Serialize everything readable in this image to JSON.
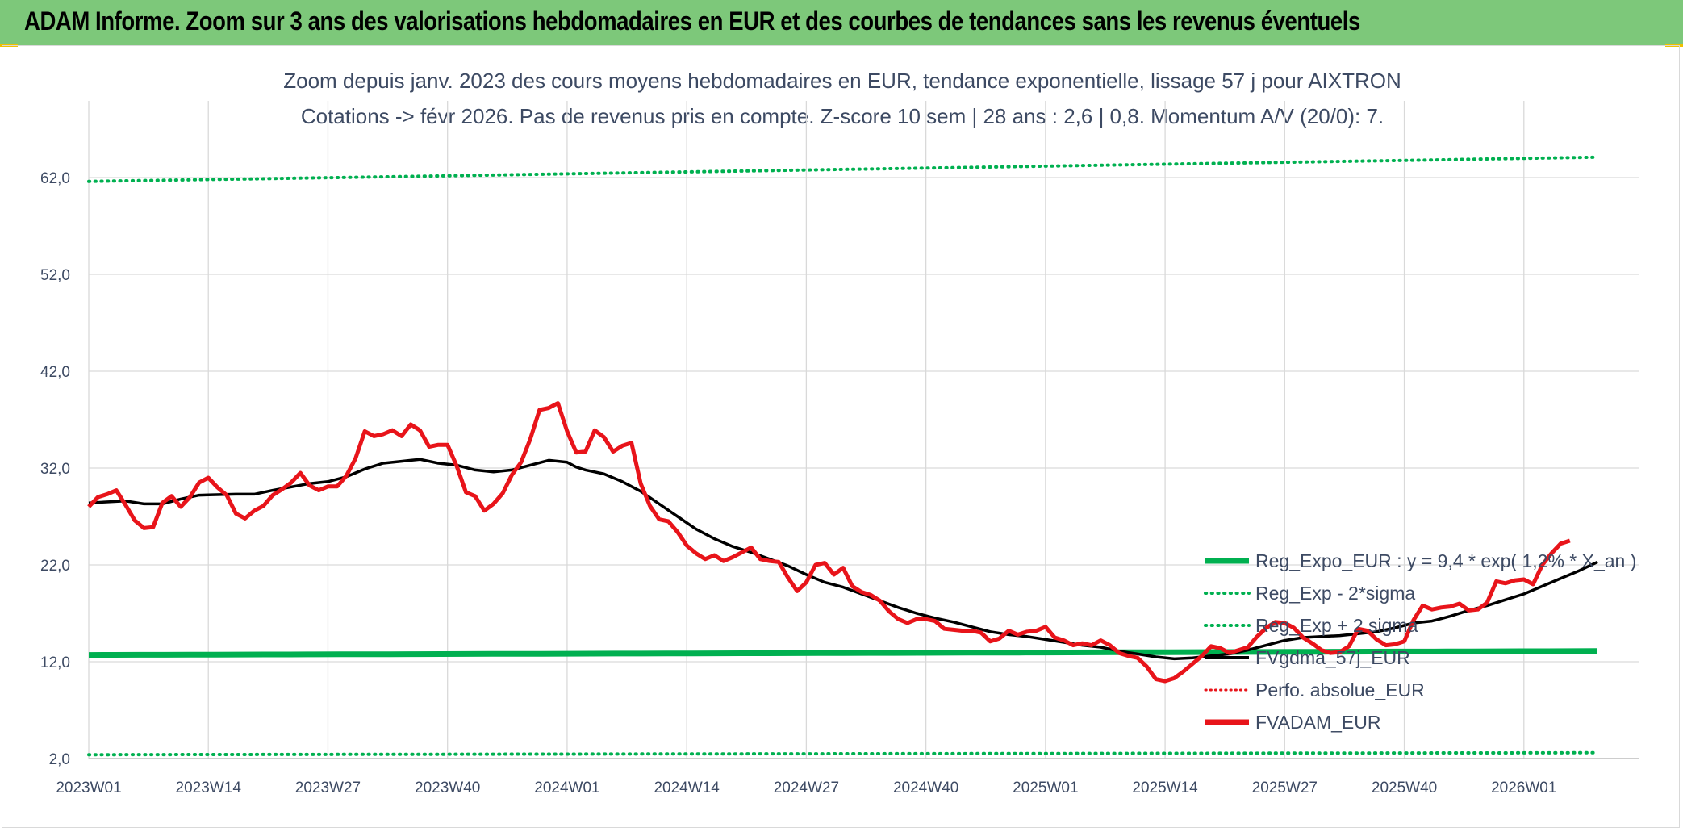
{
  "header": {
    "title": "ADAM Informe. Zoom sur 3 ans des valorisations hebdomadaires en EUR et des courbes de tendances sans les revenus éventuels"
  },
  "colors": {
    "header_bg": "#7dc87a",
    "regression": "#00b050",
    "moving_average": "#000000",
    "fvadam": "#e8141a",
    "perfo": "#e8141a",
    "grid": "#d9d9d9",
    "text": "#3d4a63"
  },
  "chart_data": {
    "type": "line",
    "title_line1": "Zoom depuis janv. 2023 des cours moyens hebdomadaires en EUR, tendance exponentielle, lissage 57 j pour AIXTRON",
    "title_line2": "Cotations -> févr 2026. Pas de revenus pris en compte. Z-score 10 sem | 28 ans : 2,6 | 0,8. Momentum A/V (20/0): 7.",
    "xlabel": "",
    "ylabel": "",
    "ylim": [
      2,
      66
    ],
    "y_ticks": [
      "62,0",
      "52,0",
      "42,0",
      "32,0",
      "22,0",
      "12,0",
      "2,0"
    ],
    "y_tick_values": [
      62,
      52,
      42,
      32,
      22,
      12,
      2
    ],
    "x_ticks": [
      "2023W01",
      "2023W14",
      "2023W27",
      "2023W40",
      "2024W01",
      "2024W14",
      "2024W27",
      "2024W40",
      "2025W01",
      "2025W14",
      "2025W27",
      "2025W40",
      "2026W01"
    ],
    "x_tick_weeks": [
      0,
      13,
      26,
      39,
      52,
      65,
      78,
      91,
      104,
      117,
      130,
      143,
      156
    ],
    "x_range_weeks": [
      0,
      164
    ],
    "grid": true,
    "legend_position": "right",
    "series": [
      {
        "name": "Reg_Expo_EUR : y = 9,4 * exp( 1,2% * X_an )",
        "style": "solid-thick",
        "color": "#00b050",
        "start": 12.7,
        "end": 13.1
      },
      {
        "name": "Reg_Exp - 2*sigma",
        "style": "dotted",
        "color": "#00b050",
        "start": 2.4,
        "end": 2.6
      },
      {
        "name": "Reg_Exp + 2 sigma",
        "style": "dotted",
        "color": "#00b050",
        "start": 61.6,
        "end": 64.1
      },
      {
        "name": "FVgdma_57j_EUR",
        "style": "solid",
        "color": "#000000",
        "points": [
          [
            0,
            28.4
          ],
          [
            4,
            28.6
          ],
          [
            6,
            28.3
          ],
          [
            8,
            28.3
          ],
          [
            10,
            28.8
          ],
          [
            12,
            29.2
          ],
          [
            16,
            29.3
          ],
          [
            18,
            29.3
          ],
          [
            20,
            29.7
          ],
          [
            24,
            30.4
          ],
          [
            26,
            30.6
          ],
          [
            28,
            31.1
          ],
          [
            30,
            31.9
          ],
          [
            32,
            32.5
          ],
          [
            34,
            32.7
          ],
          [
            36,
            32.9
          ],
          [
            38,
            32.5
          ],
          [
            40,
            32.3
          ],
          [
            42,
            31.8
          ],
          [
            44,
            31.6
          ],
          [
            46,
            31.8
          ],
          [
            48,
            32.3
          ],
          [
            50,
            32.8
          ],
          [
            52,
            32.6
          ],
          [
            53,
            32.1
          ],
          [
            54,
            31.8
          ],
          [
            56,
            31.4
          ],
          [
            58,
            30.6
          ],
          [
            60,
            29.6
          ],
          [
            62,
            28.3
          ],
          [
            64,
            27.0
          ],
          [
            66,
            25.7
          ],
          [
            68,
            24.7
          ],
          [
            70,
            23.9
          ],
          [
            72,
            23.3
          ],
          [
            74,
            22.6
          ],
          [
            76,
            21.9
          ],
          [
            78,
            21.0
          ],
          [
            80,
            20.2
          ],
          [
            82,
            19.7
          ],
          [
            84,
            19.0
          ],
          [
            86,
            18.3
          ],
          [
            88,
            17.6
          ],
          [
            90,
            17.0
          ],
          [
            92,
            16.5
          ],
          [
            94,
            16.1
          ],
          [
            96,
            15.6
          ],
          [
            98,
            15.1
          ],
          [
            100,
            14.8
          ],
          [
            102,
            14.6
          ],
          [
            104,
            14.3
          ],
          [
            106,
            14.0
          ],
          [
            108,
            13.7
          ],
          [
            110,
            13.5
          ],
          [
            112,
            13.1
          ],
          [
            114,
            12.8
          ],
          [
            116,
            12.5
          ],
          [
            118,
            12.3
          ],
          [
            120,
            12.4
          ],
          [
            122,
            12.6
          ],
          [
            124,
            12.8
          ],
          [
            126,
            13.2
          ],
          [
            128,
            13.7
          ],
          [
            130,
            14.2
          ],
          [
            132,
            14.5
          ],
          [
            134,
            14.6
          ],
          [
            136,
            14.7
          ],
          [
            138,
            14.9
          ],
          [
            140,
            15.1
          ],
          [
            142,
            15.5
          ],
          [
            144,
            16.0
          ],
          [
            146,
            16.2
          ],
          [
            148,
            16.7
          ],
          [
            150,
            17.3
          ],
          [
            152,
            17.8
          ],
          [
            154,
            18.4
          ],
          [
            156,
            19.0
          ],
          [
            158,
            19.8
          ],
          [
            160,
            20.6
          ],
          [
            162,
            21.4
          ],
          [
            164,
            22.3
          ]
        ]
      },
      {
        "name": "Perfo. absolue_EUR",
        "style": "dotted",
        "color": "#e8141a",
        "points": []
      },
      {
        "name": "FVADAM_EUR",
        "style": "solid-thick",
        "color": "#e8141a",
        "points": [
          [
            0,
            28.0
          ],
          [
            1,
            29.0
          ],
          [
            2,
            29.3
          ],
          [
            3,
            29.7
          ],
          [
            4,
            28.2
          ],
          [
            5,
            26.6
          ],
          [
            6,
            25.8
          ],
          [
            7,
            25.9
          ],
          [
            8,
            28.4
          ],
          [
            9,
            29.1
          ],
          [
            10,
            28.0
          ],
          [
            11,
            29.0
          ],
          [
            12,
            30.5
          ],
          [
            13,
            31.0
          ],
          [
            14,
            30.0
          ],
          [
            15,
            29.2
          ],
          [
            16,
            27.3
          ],
          [
            17,
            26.8
          ],
          [
            18,
            27.6
          ],
          [
            19,
            28.1
          ],
          [
            20,
            29.2
          ],
          [
            21,
            29.8
          ],
          [
            22,
            30.5
          ],
          [
            23,
            31.5
          ],
          [
            24,
            30.2
          ],
          [
            25,
            29.7
          ],
          [
            26,
            30.1
          ],
          [
            27,
            30.1
          ],
          [
            28,
            31.2
          ],
          [
            29,
            33.0
          ],
          [
            30,
            35.8
          ],
          [
            31,
            35.3
          ],
          [
            32,
            35.5
          ],
          [
            33,
            35.9
          ],
          [
            34,
            35.3
          ],
          [
            35,
            36.5
          ],
          [
            36,
            35.9
          ],
          [
            37,
            34.2
          ],
          [
            38,
            34.4
          ],
          [
            39,
            34.4
          ],
          [
            40,
            32.2
          ],
          [
            41,
            29.5
          ],
          [
            42,
            29.1
          ],
          [
            43,
            27.6
          ],
          [
            44,
            28.3
          ],
          [
            45,
            29.4
          ],
          [
            46,
            31.3
          ],
          [
            47,
            32.6
          ],
          [
            48,
            35.0
          ],
          [
            49,
            38.0
          ],
          [
            50,
            38.2
          ],
          [
            51,
            38.7
          ],
          [
            52,
            35.8
          ],
          [
            53,
            33.6
          ],
          [
            54,
            33.7
          ],
          [
            55,
            35.9
          ],
          [
            56,
            35.2
          ],
          [
            57,
            33.7
          ],
          [
            58,
            34.3
          ],
          [
            59,
            34.6
          ],
          [
            60,
            30.4
          ],
          [
            61,
            28.1
          ],
          [
            62,
            26.7
          ],
          [
            63,
            26.5
          ],
          [
            64,
            25.4
          ],
          [
            65,
            24.0
          ],
          [
            66,
            23.2
          ],
          [
            67,
            22.6
          ],
          [
            68,
            23.0
          ],
          [
            69,
            22.4
          ],
          [
            70,
            22.8
          ],
          [
            71,
            23.3
          ],
          [
            72,
            23.8
          ],
          [
            73,
            22.6
          ],
          [
            74,
            22.4
          ],
          [
            75,
            22.3
          ],
          [
            76,
            20.7
          ],
          [
            77,
            19.3
          ],
          [
            78,
            20.2
          ],
          [
            79,
            22.0
          ],
          [
            80,
            22.2
          ],
          [
            81,
            21.0
          ],
          [
            82,
            21.7
          ],
          [
            83,
            19.8
          ],
          [
            84,
            19.2
          ],
          [
            85,
            18.9
          ],
          [
            86,
            18.3
          ],
          [
            87,
            17.2
          ],
          [
            88,
            16.4
          ],
          [
            89,
            16.0
          ],
          [
            90,
            16.4
          ],
          [
            91,
            16.4
          ],
          [
            92,
            16.2
          ],
          [
            93,
            15.4
          ],
          [
            94,
            15.3
          ],
          [
            95,
            15.2
          ],
          [
            96,
            15.2
          ],
          [
            97,
            15.0
          ],
          [
            98,
            14.1
          ],
          [
            99,
            14.4
          ],
          [
            100,
            15.2
          ],
          [
            101,
            14.8
          ],
          [
            102,
            15.1
          ],
          [
            103,
            15.2
          ],
          [
            104,
            15.6
          ],
          [
            105,
            14.5
          ],
          [
            106,
            14.2
          ],
          [
            107,
            13.7
          ],
          [
            108,
            13.9
          ],
          [
            109,
            13.7
          ],
          [
            110,
            14.2
          ],
          [
            111,
            13.7
          ],
          [
            112,
            12.9
          ],
          [
            113,
            12.6
          ],
          [
            114,
            12.4
          ],
          [
            115,
            11.5
          ],
          [
            116,
            10.2
          ],
          [
            117,
            10.0
          ],
          [
            118,
            10.3
          ],
          [
            119,
            11.0
          ],
          [
            120,
            11.8
          ],
          [
            121,
            12.6
          ],
          [
            122,
            13.6
          ],
          [
            123,
            13.4
          ],
          [
            124,
            12.9
          ],
          [
            125,
            13.2
          ],
          [
            126,
            13.5
          ],
          [
            127,
            14.6
          ],
          [
            128,
            15.5
          ],
          [
            129,
            16.1
          ],
          [
            130,
            16.0
          ],
          [
            131,
            15.5
          ],
          [
            132,
            14.5
          ],
          [
            133,
            13.9
          ],
          [
            134,
            13.2
          ],
          [
            135,
            12.9
          ],
          [
            136,
            13.0
          ],
          [
            137,
            13.6
          ],
          [
            138,
            15.4
          ],
          [
            139,
            15.2
          ],
          [
            140,
            14.3
          ],
          [
            141,
            13.7
          ],
          [
            142,
            13.8
          ],
          [
            143,
            14.1
          ],
          [
            144,
            16.3
          ],
          [
            145,
            17.8
          ],
          [
            146,
            17.4
          ],
          [
            147,
            17.6
          ],
          [
            148,
            17.7
          ],
          [
            149,
            18.0
          ],
          [
            150,
            17.3
          ],
          [
            151,
            17.4
          ],
          [
            152,
            18.1
          ],
          [
            153,
            20.3
          ],
          [
            154,
            20.1
          ],
          [
            155,
            20.4
          ],
          [
            156,
            20.5
          ],
          [
            157,
            20.0
          ],
          [
            158,
            22.0
          ],
          [
            159,
            23.2
          ],
          [
            160,
            24.2
          ],
          [
            161,
            24.5
          ]
        ]
      }
    ]
  }
}
